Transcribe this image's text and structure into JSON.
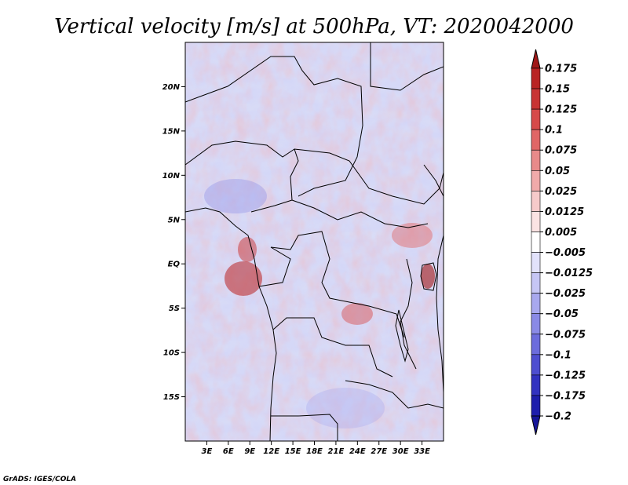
{
  "chart_data": {
    "type": "heatmap",
    "title": "Vertical velocity [m/s] at 500hPa, VT: 2020042000",
    "variable": "Vertical velocity",
    "units": "m/s",
    "level": "500hPa",
    "valid_time": "2020042000",
    "x_axis": {
      "label": "",
      "range": [
        0,
        36
      ],
      "ticks": [
        3,
        6,
        9,
        12,
        15,
        18,
        21,
        24,
        27,
        30,
        33
      ],
      "tick_labels": [
        "3E",
        "6E",
        "9E",
        "12E",
        "15E",
        "18E",
        "21E",
        "24E",
        "27E",
        "30E",
        "33E"
      ]
    },
    "y_axis": {
      "label": "",
      "range": [
        -20,
        25
      ],
      "ticks": [
        20,
        15,
        10,
        5,
        0,
        -5,
        -10,
        -15
      ],
      "tick_labels": [
        "20N",
        "15N",
        "10N",
        "5N",
        "EQ",
        "5S",
        "10S",
        "15S"
      ]
    },
    "colorbar": {
      "levels": [
        "0.175",
        "0.15",
        "0.125",
        "0.1",
        "0.075",
        "0.05",
        "0.025",
        "0.0125",
        "0.005",
        "−0.005",
        "−0.0125",
        "−0.025",
        "−0.05",
        "−0.075",
        "−0.1",
        "−0.125",
        "−0.175",
        "−0.2"
      ],
      "colors": [
        "#a01818",
        "#b92323",
        "#c83434",
        "#d64a4a",
        "#e06666",
        "#e88a8a",
        "#f0aaaa",
        "#f6caca",
        "#fbe3e3",
        "#ffffff",
        "#e2e2fb",
        "#c6c6f5",
        "#a8a8ee",
        "#8a8ae6",
        "#6c6cdc",
        "#4e4ed0",
        "#3232c0",
        "#1e1eac",
        "#16169a"
      ],
      "extend": "both"
    }
  },
  "footer": {
    "credit": "GrADS: IGES/COLA"
  }
}
